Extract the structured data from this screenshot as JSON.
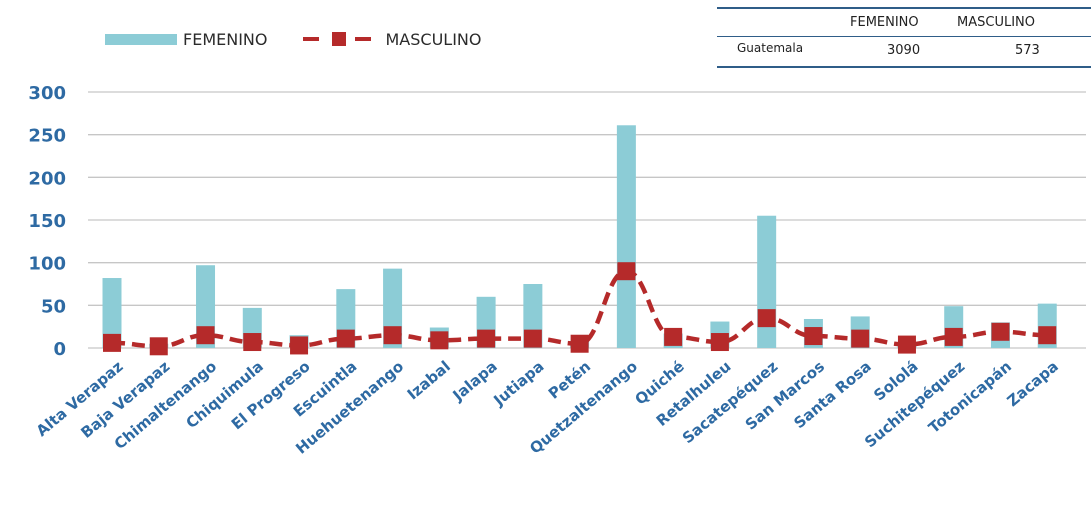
{
  "chart_data": {
    "type": "bar",
    "categories": [
      "Alta Verapaz",
      "Baja Verapaz",
      "Chimaltenango",
      "Chiquimula",
      "El Progreso",
      "Escuintla",
      "Huehuetenango",
      "Izabal",
      "Jalapa",
      "Jutiapa",
      "Petén",
      "Quetzaltenango",
      "Quiché",
      "Retalhuleu",
      "Sacatepéquez",
      "San Marcos",
      "Santa Rosa",
      "Sololá",
      "Suchitepéquez",
      "Totonicapán",
      "Zacapa"
    ],
    "series": [
      {
        "name": "FEMENINO",
        "type": "bar",
        "color": "#8cccd6",
        "values": [
          82,
          5,
          97,
          47,
          15,
          69,
          93,
          24,
          60,
          75,
          8,
          261,
          17,
          31,
          155,
          34,
          37,
          5,
          49,
          30,
          52
        ]
      },
      {
        "name": "MASCULINO",
        "type": "line",
        "color": "#b52a2a",
        "style": "dashed",
        "marker": "square",
        "values": [
          6,
          2,
          15,
          7,
          3,
          11,
          15,
          9,
          11,
          11,
          5,
          90,
          13,
          7,
          35,
          14,
          11,
          4,
          13,
          19,
          15
        ]
      }
    ],
    "yticks": [
      0,
      50,
      100,
      150,
      200,
      250,
      300
    ],
    "ylim": [
      0,
      300
    ],
    "grid": true,
    "legend_position": "top-left",
    "title": "",
    "xlabel": "",
    "ylabel": ""
  },
  "legend": {
    "femenino_label": "FEMENINO",
    "masculino_label": "MASCULINO"
  },
  "summary_table": {
    "headers": [
      "FEMENINO",
      "MASCULINO"
    ],
    "row_label": "Guatemala",
    "values": [
      "3090",
      "573"
    ]
  },
  "colors": {
    "bar": "#8cccd6",
    "line": "#b52a2a",
    "axis_text": "#2e6aa3",
    "grid": "#c6c6c6",
    "table_rule": "#2f5d88"
  }
}
